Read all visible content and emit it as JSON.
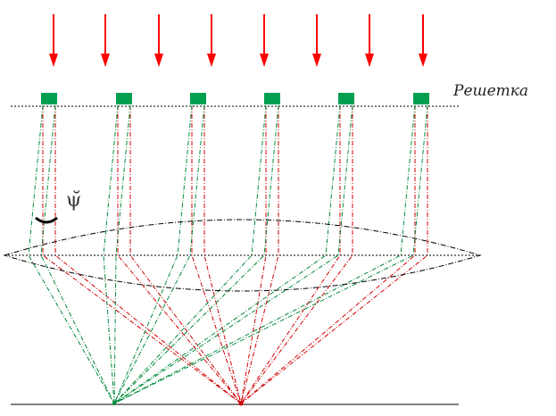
{
  "diagram": {
    "grating_label": "Решетка",
    "angle_symbol": "ψ̆",
    "slit_count": 6,
    "arrow_count": 8,
    "colors": {
      "incident_arrow": "#ff0000",
      "slit": "#00a050",
      "direct_ray": "#d00000",
      "diffracted_ray": "#008a3a",
      "grating_line": "#000000",
      "lens": "#000000",
      "screen": "#000000",
      "focus_point": "#d00000"
    }
  }
}
